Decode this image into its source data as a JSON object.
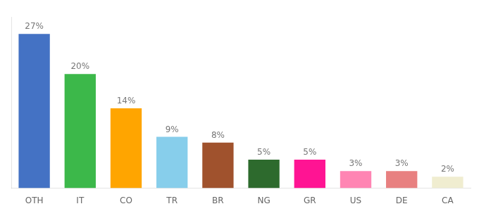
{
  "chart_data": {
    "type": "bar",
    "categories": [
      "OTH",
      "IT",
      "CO",
      "TR",
      "BR",
      "NG",
      "GR",
      "US",
      "DE",
      "CA"
    ],
    "values": [
      27,
      20,
      14,
      9,
      8,
      5,
      5,
      3,
      3,
      2
    ],
    "value_labels": [
      "27%",
      "20%",
      "14%",
      "9%",
      "8%",
      "5%",
      "5%",
      "3%",
      "3%",
      "2%"
    ],
    "colors": [
      "#4472C4",
      "#3CB84A",
      "#FFA500",
      "#87CEEB",
      "#A0522D",
      "#2D6A2D",
      "#FF1493",
      "#FF85B3",
      "#E88080",
      "#F0EDD0"
    ],
    "ylim": [
      0,
      30
    ],
    "grid": false,
    "data_labels": true,
    "tick_labels": "x"
  }
}
